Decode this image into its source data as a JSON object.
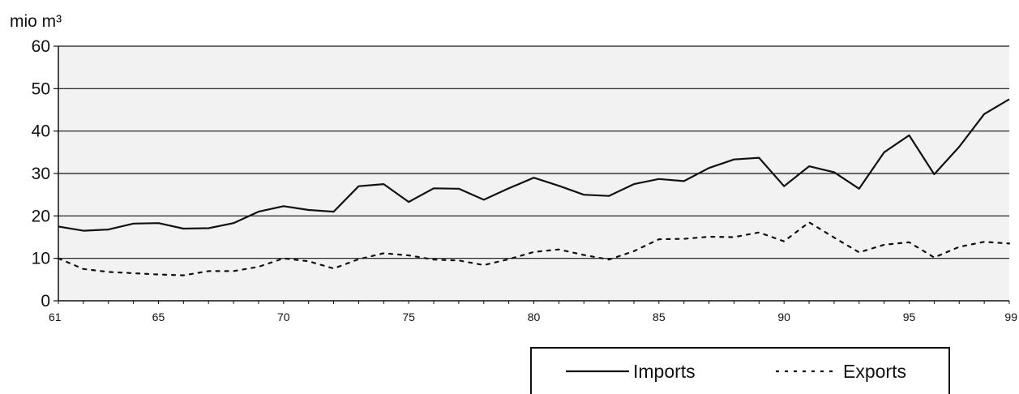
{
  "chart_data": {
    "type": "line",
    "ylabel": "mio m³",
    "xlabel": "",
    "ylim": [
      0,
      60
    ],
    "yticks": [
      0,
      10,
      20,
      30,
      40,
      50,
      60
    ],
    "xlim": [
      61,
      99
    ],
    "xticks": [
      61,
      65,
      70,
      75,
      80,
      85,
      90,
      95,
      99
    ],
    "grid": true,
    "legend_position": "bottom-right",
    "x": [
      61,
      62,
      63,
      64,
      65,
      66,
      67,
      68,
      69,
      70,
      71,
      72,
      73,
      74,
      75,
      76,
      77,
      78,
      79,
      80,
      81,
      82,
      83,
      84,
      85,
      86,
      87,
      88,
      89,
      90,
      91,
      92,
      93,
      94,
      95,
      96,
      97,
      98,
      99
    ],
    "series": [
      {
        "name": "Imports",
        "style": "solid",
        "values": [
          17.5,
          16.5,
          16.8,
          18.2,
          18.3,
          17,
          17.1,
          18.3,
          21,
          22.3,
          21.4,
          21,
          27,
          27.5,
          23.3,
          26.5,
          26.4,
          23.8,
          26.5,
          29,
          27.1,
          25,
          24.7,
          27.5,
          28.7,
          28.2,
          31.3,
          33.3,
          33.7,
          27,
          31.7,
          30.3,
          26.4,
          35,
          39,
          29.8,
          36.3,
          44,
          47.5
        ]
      },
      {
        "name": "Exports",
        "style": "dotted",
        "values": [
          10,
          7.5,
          6.8,
          6.5,
          6.2,
          6,
          7,
          7,
          8,
          10,
          9.3,
          7.6,
          9.8,
          11.2,
          10.7,
          9.7,
          9.5,
          8.4,
          9.8,
          11.5,
          12.1,
          10.8,
          9.7,
          11.7,
          14.5,
          14.6,
          15.1,
          15,
          16.1,
          14,
          18.5,
          14.9,
          11.4,
          13.2,
          13.8,
          10.2,
          12.7,
          13.9,
          13.5
        ]
      }
    ]
  },
  "colors": {
    "line": "#111111",
    "gridline": "#111111",
    "plot_band": "#f2f2f2",
    "background": "#ffffff"
  }
}
